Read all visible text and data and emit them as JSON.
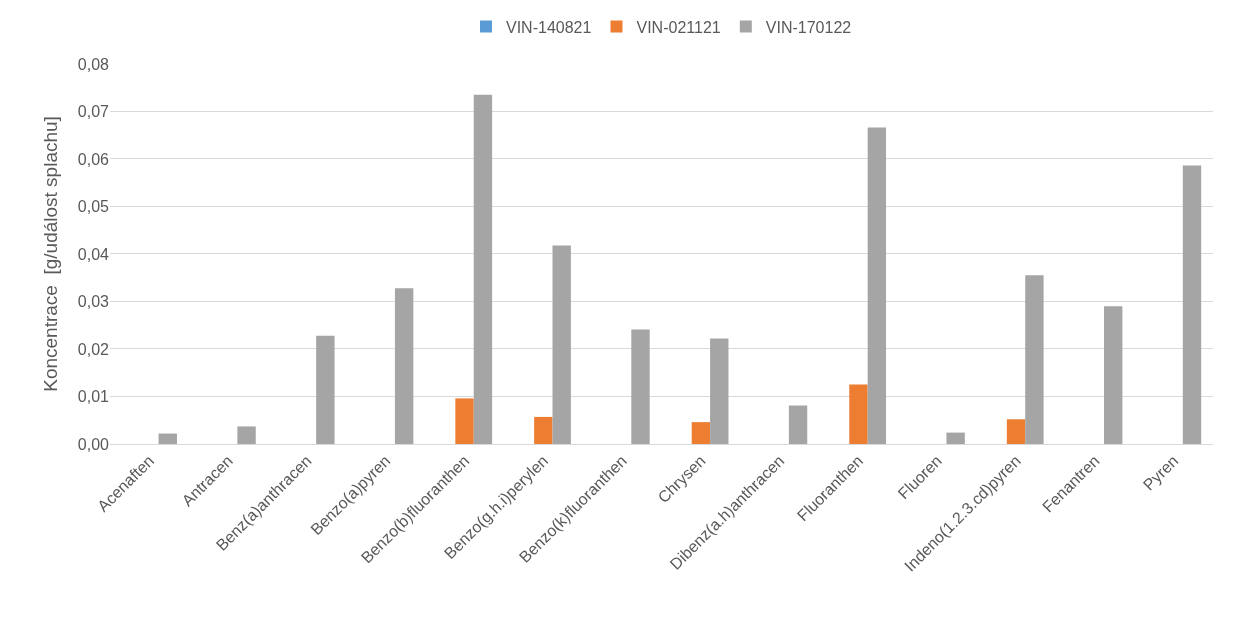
{
  "chart_data": {
    "type": "bar",
    "ylabel": "Koncentrace  [g/událost splachu]",
    "categories": [
      "Acenaften",
      "Antracen",
      "Benz(a)anthracen",
      "Benzo(a)pyren",
      "Benzo(b)fluoranthen",
      "Benzo(g.h.i)perylen",
      "Benzo(k)fluoranthen",
      "Chrysen",
      "Dibenz(a.h)anthracen",
      "Fluoranthen",
      "Fluoren",
      "Indeno(1.2.3.cd)pyren",
      "Fenantren",
      "Pyren"
    ],
    "series": [
      {
        "name": "VIN-140821",
        "color": "#5b9bd5",
        "values": [
          null,
          null,
          null,
          null,
          null,
          null,
          null,
          null,
          null,
          null,
          null,
          null,
          null,
          null
        ]
      },
      {
        "name": "VIN-021121",
        "color": "#ed7d31",
        "values": [
          null,
          null,
          null,
          null,
          0.0096,
          0.0057,
          null,
          0.0046,
          null,
          0.0125,
          null,
          0.0052,
          null,
          null
        ]
      },
      {
        "name": "VIN-170122",
        "color": "#a5a5a5",
        "values": [
          0.0022,
          0.0037,
          0.0228,
          0.0328,
          0.0735,
          0.0418,
          0.0241,
          0.0222,
          0.0081,
          0.0666,
          0.0024,
          0.0355,
          0.029,
          0.0586
        ]
      }
    ],
    "ylim": [
      0,
      0.08
    ],
    "yticks": [
      {
        "value": 0,
        "label": "0,00"
      },
      {
        "value": 0.01,
        "label": "0,01"
      },
      {
        "value": 0.02,
        "label": "0,02"
      },
      {
        "value": 0.03,
        "label": "0,03"
      },
      {
        "value": 0.04,
        "label": "0,04"
      },
      {
        "value": 0.05,
        "label": "0,05"
      },
      {
        "value": 0.06,
        "label": "0,06"
      },
      {
        "value": 0.07,
        "label": "0,07"
      },
      {
        "value": 0.08,
        "label": "0,08"
      }
    ],
    "grid": "y",
    "legend": "top"
  }
}
